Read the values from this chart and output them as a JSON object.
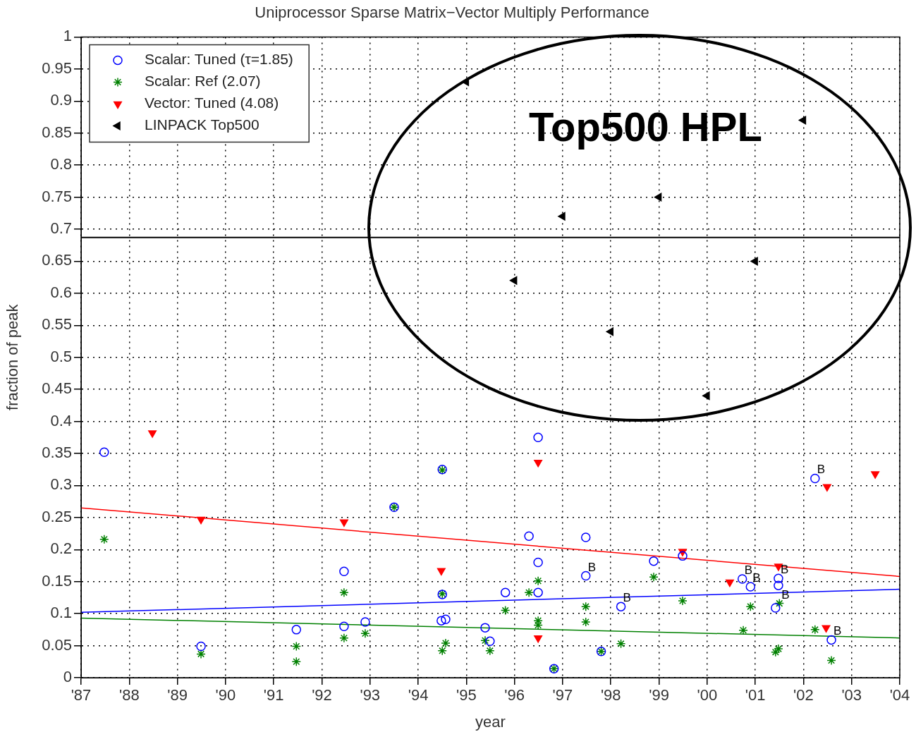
{
  "chart_data": {
    "type": "scatter",
    "title": "Uniprocessor Sparse Matrix−Vector Multiply Performance",
    "xlabel": "year",
    "ylabel": "fraction of peak",
    "xlim": [
      1987,
      2004
    ],
    "xticks": [
      {
        "value": 1987,
        "label": "'87"
      },
      {
        "value": 1988,
        "label": "'88"
      },
      {
        "value": 1989,
        "label": "'89"
      },
      {
        "value": 1990,
        "label": "'90"
      },
      {
        "value": 1991,
        "label": "'91"
      },
      {
        "value": 1992,
        "label": "'92"
      },
      {
        "value": 1993,
        "label": "'93"
      },
      {
        "value": 1994,
        "label": "'94"
      },
      {
        "value": 1995,
        "label": "'95"
      },
      {
        "value": 1996,
        "label": "'96"
      },
      {
        "value": 1997,
        "label": "'97"
      },
      {
        "value": 1998,
        "label": "'98"
      },
      {
        "value": 1999,
        "label": "'99"
      },
      {
        "value": 2000,
        "label": "'00"
      },
      {
        "value": 2001,
        "label": "'01"
      },
      {
        "value": 2002,
        "label": "'02"
      },
      {
        "value": 2003,
        "label": "'03"
      },
      {
        "value": 2004,
        "label": "'04"
      }
    ],
    "ylim": [
      0,
      1
    ],
    "yticks": [
      0,
      0.05,
      0.1,
      0.15,
      0.2,
      0.25,
      0.3,
      0.35,
      0.4,
      0.45,
      0.5,
      0.55,
      0.6,
      0.65,
      0.7,
      0.75,
      0.8,
      0.85,
      0.9,
      0.95,
      1
    ],
    "grid": true,
    "legend": "top left",
    "series": [
      {
        "name": "Scalar: Tuned (τ=1.85)",
        "type": "scatter",
        "marker": "circle",
        "color": "#0000ff",
        "x": [
          1987.48,
          1989.49,
          1991.47,
          1992.46,
          1992.46,
          1992.9,
          1993.5,
          1994.5,
          1994.48,
          1994.57,
          1994.5,
          1995.39,
          1995.49,
          1995.81,
          1996.3,
          1996.49,
          1996.49,
          1996.49,
          1996.82,
          1997.48,
          1997.48,
          1997.8,
          1998.21,
          1998.89,
          1999.49,
          2000.73,
          2000.9,
          2001.48,
          2001.48,
          2001.42,
          2002.24,
          2002.58
        ],
        "values": [
          0.352,
          0.049,
          0.075,
          0.166,
          0.08,
          0.087,
          0.266,
          0.325,
          0.089,
          0.091,
          0.13,
          0.078,
          0.057,
          0.133,
          0.221,
          0.375,
          0.18,
          0.133,
          0.014,
          0.159,
          0.219,
          0.041,
          0.111,
          0.182,
          0.19,
          0.154,
          0.142,
          0.155,
          0.144,
          0.109,
          0.311,
          0.059
        ]
      },
      {
        "name": "Scalar: Ref (2.07)",
        "type": "scatter",
        "marker": "cross",
        "color": "#008000",
        "x": [
          1987.48,
          1989.49,
          1991.47,
          1991.47,
          1992.46,
          1992.46,
          1992.9,
          1993.5,
          1994.5,
          1994.5,
          1994.5,
          1994.57,
          1995.39,
          1995.49,
          1995.81,
          1996.3,
          1996.49,
          1996.49,
          1996.49,
          1996.82,
          1997.48,
          1997.48,
          1997.8,
          1998.21,
          1998.89,
          1999.49,
          2000.75,
          2000.9,
          2001.42,
          2001.48,
          2001.5,
          2002.24,
          2002.58
        ],
        "values": [
          0.216,
          0.037,
          0.049,
          0.025,
          0.133,
          0.062,
          0.069,
          0.266,
          0.324,
          0.131,
          0.042,
          0.054,
          0.058,
          0.042,
          0.105,
          0.133,
          0.151,
          0.089,
          0.082,
          0.014,
          0.111,
          0.087,
          0.041,
          0.053,
          0.157,
          0.12,
          0.074,
          0.111,
          0.04,
          0.045,
          0.116,
          0.075,
          0.027
        ]
      },
      {
        "name": "Vector: Tuned (4.08)",
        "type": "scatter",
        "marker": "triangle",
        "color": "#ff0000",
        "x": [
          1988.48,
          1989.49,
          1992.46,
          1994.48,
          1996.49,
          1996.49,
          1999.49,
          2000.47,
          2001.48,
          2002.49,
          2002.47,
          2003.49
        ],
        "values": [
          0.382,
          0.247,
          0.243,
          0.167,
          0.336,
          0.062,
          0.197,
          0.149,
          0.174,
          0.298,
          0.078,
          0.318
        ]
      },
      {
        "name": "LINPACK Top500",
        "type": "scatter",
        "marker": "triangle",
        "color": "#000000",
        "x": [
          1995,
          1996,
          1997,
          1998,
          1999,
          2000,
          2001,
          2002
        ],
        "values": [
          0.93,
          0.62,
          0.72,
          0.54,
          0.75,
          0.44,
          0.65,
          0.87
        ]
      },
      {
        "type": "line",
        "marker": "none",
        "color": "#ff0000",
        "x": [
          1987,
          2004
        ],
        "values": [
          0.265,
          0.158
        ]
      },
      {
        "type": "line",
        "marker": "none",
        "color": "#0000ff",
        "x": [
          1987,
          2004
        ],
        "values": [
          0.102,
          0.138
        ]
      },
      {
        "type": "line",
        "marker": "none",
        "color": "#008000",
        "x": [
          1987,
          2004
        ],
        "values": [
          0.093,
          0.062
        ]
      }
    ],
    "ref_lines": [
      {
        "axis": "y",
        "value": 0.687,
        "color": "#000000"
      }
    ],
    "annotations": [
      "Top500 HPL",
      {
        "text": "B",
        "x": 1997.48,
        "y": 0.159
      },
      {
        "text": "B",
        "x": 1998.21,
        "y": 0.111
      },
      {
        "text": "B",
        "x": 2000.73,
        "y": 0.154
      },
      {
        "text": "B",
        "x": 2000.9,
        "y": 0.142
      },
      {
        "text": "B",
        "x": 2001.48,
        "y": 0.155
      },
      {
        "text": "B",
        "x": 2001.5,
        "y": 0.116
      },
      {
        "text": "B",
        "x": 2002.24,
        "y": 0.311
      },
      {
        "text": "B",
        "x": 2002.58,
        "y": 0.059
      }
    ]
  }
}
